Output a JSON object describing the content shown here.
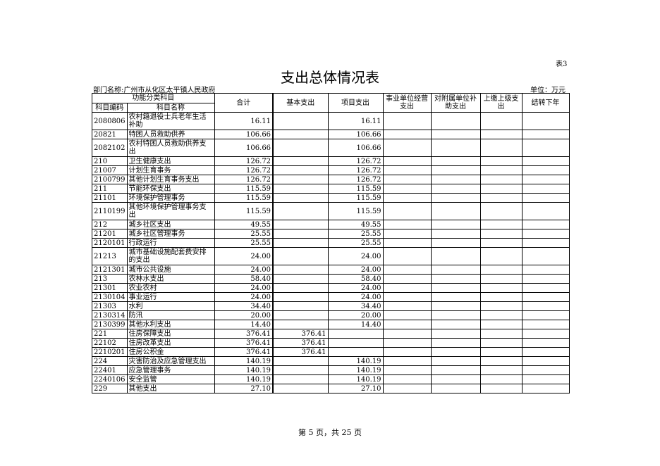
{
  "table_no": "表3",
  "title": "支出总体情况表",
  "department": "部门名称:广州市从化区太平镇人民政府",
  "unit": "单位：万元",
  "headers": {
    "group": "功能分类科目",
    "code": "科目编码",
    "name": "科目名称",
    "total": "合计",
    "basic": "基本支出",
    "project": "项目支出",
    "business": "事业单位经营支出",
    "subsidy": "对附属单位补助支出",
    "upper": "上缴上级支出",
    "carry": "结转下年"
  },
  "rows": [
    [
      "2080806",
      "农村籍退役士兵老年生活补助",
      "16.11",
      "",
      "16.11"
    ],
    [
      "20821",
      "特困人员救助供养",
      "106.66",
      "",
      "106.66"
    ],
    [
      "2082102",
      "农村特困人员救助供养支出",
      "106.66",
      "",
      "106.66"
    ],
    [
      "210",
      "卫生健康支出",
      "126.72",
      "",
      "126.72"
    ],
    [
      "21007",
      "计划生育事务",
      "126.72",
      "",
      "126.72"
    ],
    [
      "2100799",
      "其他计划生育事务支出",
      "126.72",
      "",
      "126.72"
    ],
    [
      "211",
      "节能环保支出",
      "115.59",
      "",
      "115.59"
    ],
    [
      "21101",
      "环境保护管理事务",
      "115.59",
      "",
      "115.59"
    ],
    [
      "2110199",
      "其他环境保护管理事务支出",
      "115.59",
      "",
      "115.59"
    ],
    [
      "212",
      "城乡社区支出",
      "49.55",
      "",
      "49.55"
    ],
    [
      "21201",
      "城乡社区管理事务",
      "25.55",
      "",
      "25.55"
    ],
    [
      "2120101",
      "行政运行",
      "25.55",
      "",
      "25.55"
    ],
    [
      "21213",
      "城市基础设施配套费安排的支出",
      "24.00",
      "",
      "24.00"
    ],
    [
      "2121301",
      "城市公共设施",
      "24.00",
      "",
      "24.00"
    ],
    [
      "213",
      "农林水支出",
      "58.40",
      "",
      "58.40"
    ],
    [
      "21301",
      "农业农村",
      "24.00",
      "",
      "24.00"
    ],
    [
      "2130104",
      "事业运行",
      "24.00",
      "",
      "24.00"
    ],
    [
      "21303",
      "水利",
      "34.40",
      "",
      "34.40"
    ],
    [
      "2130314",
      "防汛",
      "20.00",
      "",
      "20.00"
    ],
    [
      "2130399",
      "其他水利支出",
      "14.40",
      "",
      "14.40"
    ],
    [
      "221",
      "住房保障支出",
      "376.41",
      "376.41",
      ""
    ],
    [
      "22102",
      "住房改革支出",
      "376.41",
      "376.41",
      ""
    ],
    [
      "2210201",
      "住房公积金",
      "376.41",
      "376.41",
      ""
    ],
    [
      "224",
      "灾害防治及应急管理支出",
      "140.19",
      "",
      "140.19"
    ],
    [
      "22401",
      "应急管理事务",
      "140.19",
      "",
      "140.19"
    ],
    [
      "2240106",
      "安全监管",
      "140.19",
      "",
      "140.19"
    ],
    [
      "229",
      "其他支出",
      "27.10",
      "",
      "27.10"
    ]
  ],
  "footer": "第 5 页，共 25 页"
}
